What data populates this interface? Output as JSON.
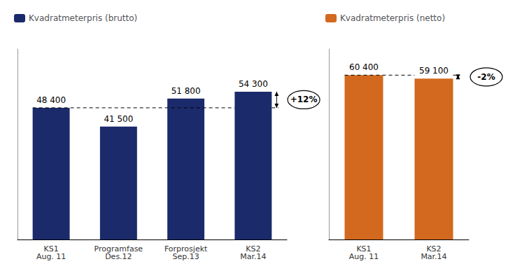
{
  "chart_data": [
    {
      "type": "bar",
      "categories": [
        "KS1\nAug. 11",
        "Programfase\nDes.12",
        "Forprosjekt\nSep.13",
        "KS2\nMar.14"
      ],
      "series": [
        {
          "name": "Kvadratmeterpris (brutto)",
          "color": "#1B2A6B",
          "values": [
            48400,
            41500,
            51800,
            54300
          ],
          "value_labels": [
            "48 400",
            "41 500",
            "51 800",
            "54 300"
          ]
        }
      ],
      "annotation": "+12%",
      "ylim": [
        0,
        70000
      ],
      "grid": false,
      "legend": "upper left",
      "data_labels": true,
      "tick_labels": "x"
    },
    {
      "type": "bar",
      "categories": [
        "KS1\nAug. 11",
        "KS2\nMar.14"
      ],
      "series": [
        {
          "name": "Kvadratmeterpris (netto)",
          "color": "#D2691E",
          "values": [
            60400,
            59100
          ],
          "value_labels": [
            "60 400",
            "59 100"
          ]
        }
      ],
      "annotation": "-2%",
      "ylim": [
        0,
        70000
      ],
      "grid": false,
      "legend": "upper left",
      "data_labels": true,
      "tick_labels": "x"
    }
  ]
}
